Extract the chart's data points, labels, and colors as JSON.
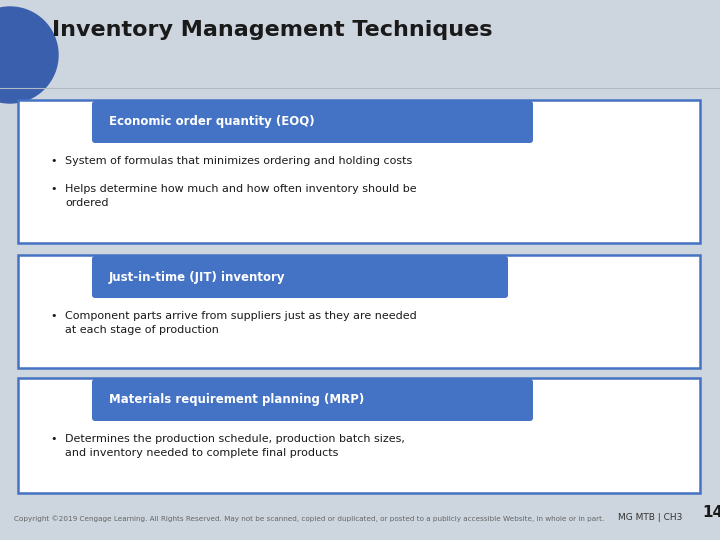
{
  "title": "Inventory Management Techniques",
  "title_fontsize": 16,
  "title_color": "#1a1a1a",
  "bg_color": "#cdd5de",
  "header_bg": "#4472c4",
  "header_text_color": "#ffffff",
  "box_border_color": "#4472c4",
  "box_fill_color": "#ffffff",
  "bullet_text_color": "#1a1a1a",
  "sections": [
    {
      "header": "Economic order quantity (EOQ)",
      "bullets": [
        "System of formulas that minimizes ordering and holding costs",
        "Helps determine how much and how often inventory should be\nordered"
      ]
    },
    {
      "header": "Just-in-time (JIT) inventory",
      "bullets": [
        "Component parts arrive from suppliers just as they are needed\nat each stage of production"
      ]
    },
    {
      "header": "Materials requirement planning (MRP)",
      "bullets": [
        "Determines the production schedule, production batch sizes,\nand inventory needed to complete final products"
      ]
    }
  ],
  "footer_left": "Copyright ©2019 Cengage Learning. All Rights Reserved. May not be scanned, copied or duplicated, or posted to a publicly accessible Website, in whole or in part.",
  "footer_right": "MG MTB | CH3",
  "footer_page": "14",
  "footer_fontsize": 5.2,
  "circle_color": "#3a5fad"
}
